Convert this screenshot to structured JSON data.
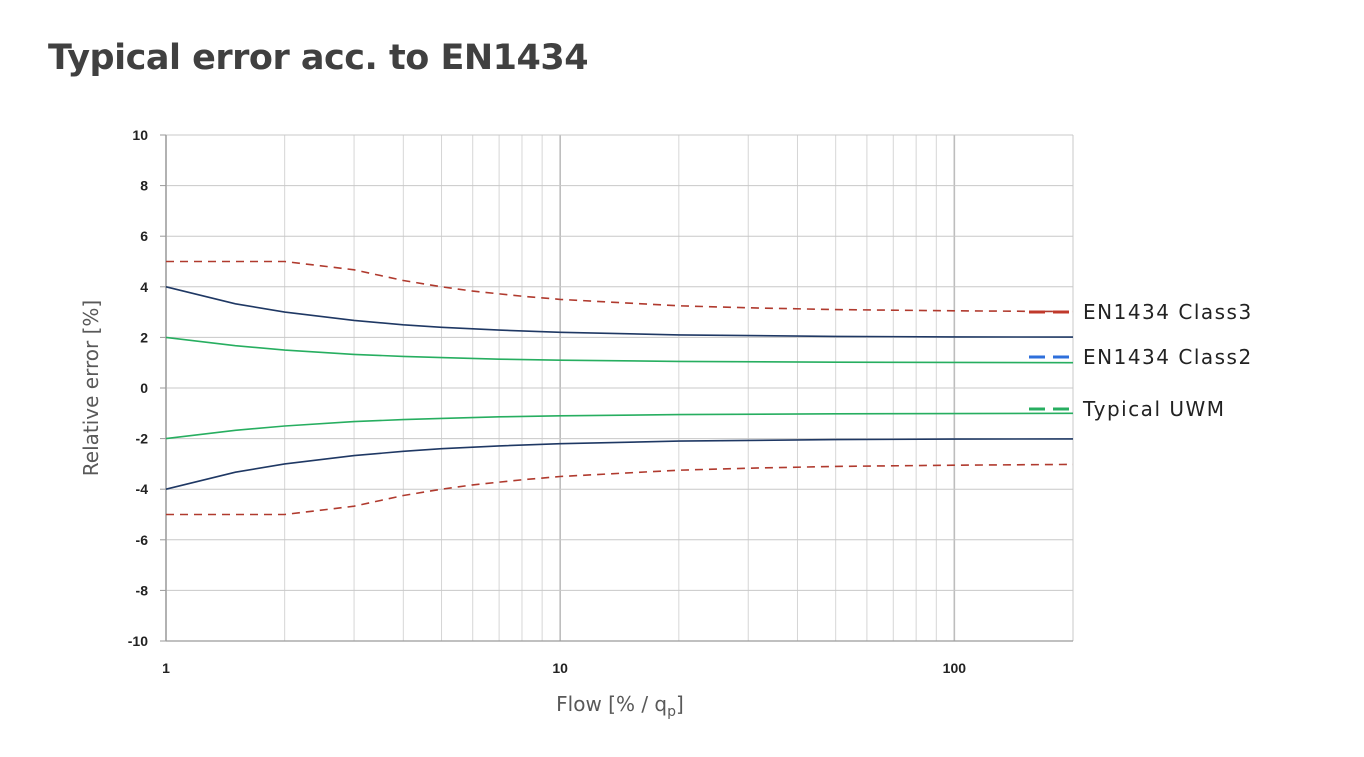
{
  "page": {
    "title": "Typical error acc. to EN1434"
  },
  "chart_data": {
    "type": "line",
    "title": "Typical error acc. to EN1434",
    "xlabel": "Flow [% / q",
    "xlabel_sub": "p",
    "xlabel_end": "]",
    "ylabel": "Relative error [%]",
    "x_scale": "log",
    "xlim": [
      1,
      200
    ],
    "ylim": [
      -10,
      10
    ],
    "x_ticks": [
      1,
      10,
      100
    ],
    "x_tick_labels": [
      "1",
      "10",
      "100"
    ],
    "y_ticks": [
      10,
      8,
      6,
      4,
      2,
      0,
      -2,
      -4,
      -6,
      -8,
      -10
    ],
    "y_tick_labels": [
      "10",
      "8",
      "6",
      "4",
      "2",
      "0",
      "-2",
      "-4",
      "-6",
      "-8",
      "-10"
    ],
    "grid": true,
    "legend_position": "right",
    "series": [
      {
        "name": "EN1434 Class3",
        "color": "#b03a2e",
        "legend_color": "#c0392b",
        "line_style": "dashed",
        "upper": [
          [
            1,
            5.0
          ],
          [
            2,
            5.0
          ],
          [
            3,
            4.67
          ],
          [
            4,
            4.25
          ],
          [
            5,
            4.0
          ],
          [
            6,
            3.83
          ],
          [
            8,
            3.63
          ],
          [
            10,
            3.5
          ],
          [
            20,
            3.25
          ],
          [
            30,
            3.17
          ],
          [
            50,
            3.1
          ],
          [
            100,
            3.05
          ],
          [
            200,
            3.02
          ]
        ],
        "lower": [
          [
            1,
            -5.0
          ],
          [
            2,
            -5.0
          ],
          [
            3,
            -4.67
          ],
          [
            4,
            -4.25
          ],
          [
            5,
            -4.0
          ],
          [
            6,
            -3.83
          ],
          [
            8,
            -3.63
          ],
          [
            10,
            -3.5
          ],
          [
            20,
            -3.25
          ],
          [
            30,
            -3.17
          ],
          [
            50,
            -3.1
          ],
          [
            100,
            -3.05
          ],
          [
            200,
            -3.02
          ]
        ]
      },
      {
        "name": "EN1434 Class2",
        "color": "#1f3864",
        "legend_color": "#2e6fdb",
        "line_style": "solid",
        "upper": [
          [
            1,
            4.0
          ],
          [
            1.5,
            3.33
          ],
          [
            2,
            3.0
          ],
          [
            3,
            2.67
          ],
          [
            4,
            2.5
          ],
          [
            5,
            2.4
          ],
          [
            7,
            2.29
          ],
          [
            10,
            2.2
          ],
          [
            20,
            2.1
          ],
          [
            50,
            2.04
          ],
          [
            100,
            2.02
          ],
          [
            200,
            2.01
          ]
        ],
        "lower": [
          [
            1,
            -4.0
          ],
          [
            1.5,
            -3.33
          ],
          [
            2,
            -3.0
          ],
          [
            3,
            -2.67
          ],
          [
            4,
            -2.5
          ],
          [
            5,
            -2.4
          ],
          [
            7,
            -2.29
          ],
          [
            10,
            -2.2
          ],
          [
            20,
            -2.1
          ],
          [
            50,
            -2.04
          ],
          [
            100,
            -2.02
          ],
          [
            200,
            -2.01
          ]
        ]
      },
      {
        "name": "Typical UWM",
        "color": "#27ae60",
        "legend_color": "#27ae60",
        "line_style": "solid",
        "upper": [
          [
            1,
            2.0
          ],
          [
            1.5,
            1.67
          ],
          [
            2,
            1.5
          ],
          [
            3,
            1.33
          ],
          [
            4,
            1.25
          ],
          [
            5,
            1.2
          ],
          [
            7,
            1.14
          ],
          [
            10,
            1.1
          ],
          [
            20,
            1.05
          ],
          [
            50,
            1.02
          ],
          [
            100,
            1.01
          ],
          [
            200,
            1.0
          ]
        ],
        "lower": [
          [
            1,
            -2.0
          ],
          [
            1.5,
            -1.67
          ],
          [
            2,
            -1.5
          ],
          [
            3,
            -1.33
          ],
          [
            4,
            -1.25
          ],
          [
            5,
            -1.2
          ],
          [
            7,
            -1.14
          ],
          [
            10,
            -1.1
          ],
          [
            20,
            -1.05
          ],
          [
            50,
            -1.02
          ],
          [
            100,
            -1.01
          ],
          [
            200,
            -1.0
          ]
        ]
      }
    ]
  }
}
